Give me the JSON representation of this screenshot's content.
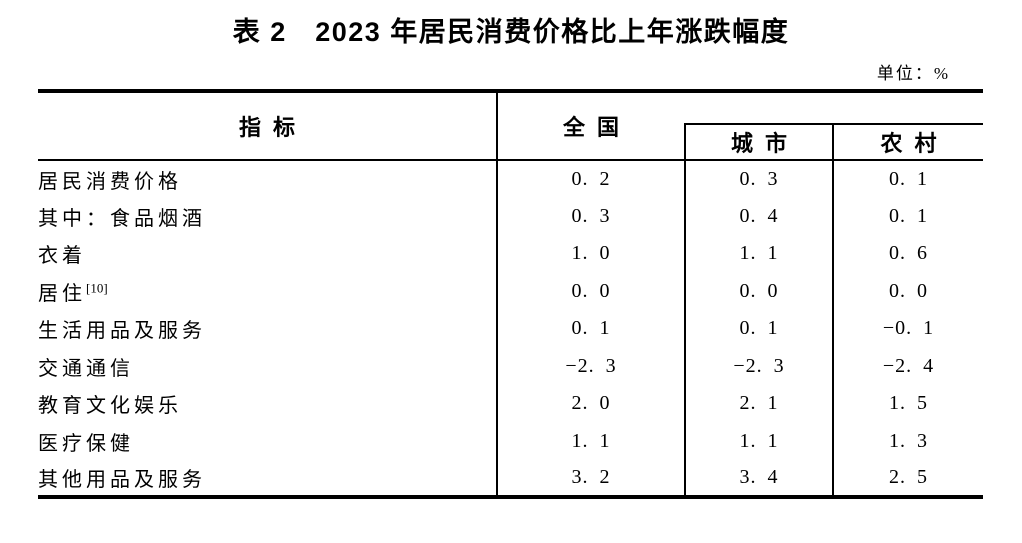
{
  "title": "表 2　2023 年居民消费价格比上年涨跌幅度",
  "unit_label": "单位：%",
  "colors": {
    "text": "#000000",
    "border": "#000000",
    "background": "#ffffff"
  },
  "table": {
    "col_headers": {
      "indicator": "指标",
      "national": "全国",
      "city": "城市",
      "rural": "农村"
    },
    "rows": [
      {
        "label": "居民消费价格",
        "footnote": "",
        "national": "0.2",
        "city": "0.3",
        "rural": "0.1"
      },
      {
        "label": "其中：食品烟酒",
        "footnote": "",
        "national": "0.3",
        "city": "0.4",
        "rural": "0.1"
      },
      {
        "label": "衣着",
        "footnote": "",
        "national": "1.0",
        "city": "1.1",
        "rural": "0.6"
      },
      {
        "label": "居住",
        "footnote": "[10]",
        "national": "0.0",
        "city": "0.0",
        "rural": "0.0"
      },
      {
        "label": "生活用品及服务",
        "footnote": "",
        "national": "0.1",
        "city": "0.1",
        "rural": "-0.1"
      },
      {
        "label": "交通通信",
        "footnote": "",
        "national": "-2.3",
        "city": "-2.3",
        "rural": "-2.4"
      },
      {
        "label": "教育文化娱乐",
        "footnote": "",
        "national": "2.0",
        "city": "2.1",
        "rural": "1.5"
      },
      {
        "label": "医疗保健",
        "footnote": "",
        "national": "1.1",
        "city": "1.1",
        "rural": "1.3"
      },
      {
        "label": "其他用品及服务",
        "footnote": "",
        "national": "3.2",
        "city": "3.4",
        "rural": "2.5"
      }
    ]
  }
}
